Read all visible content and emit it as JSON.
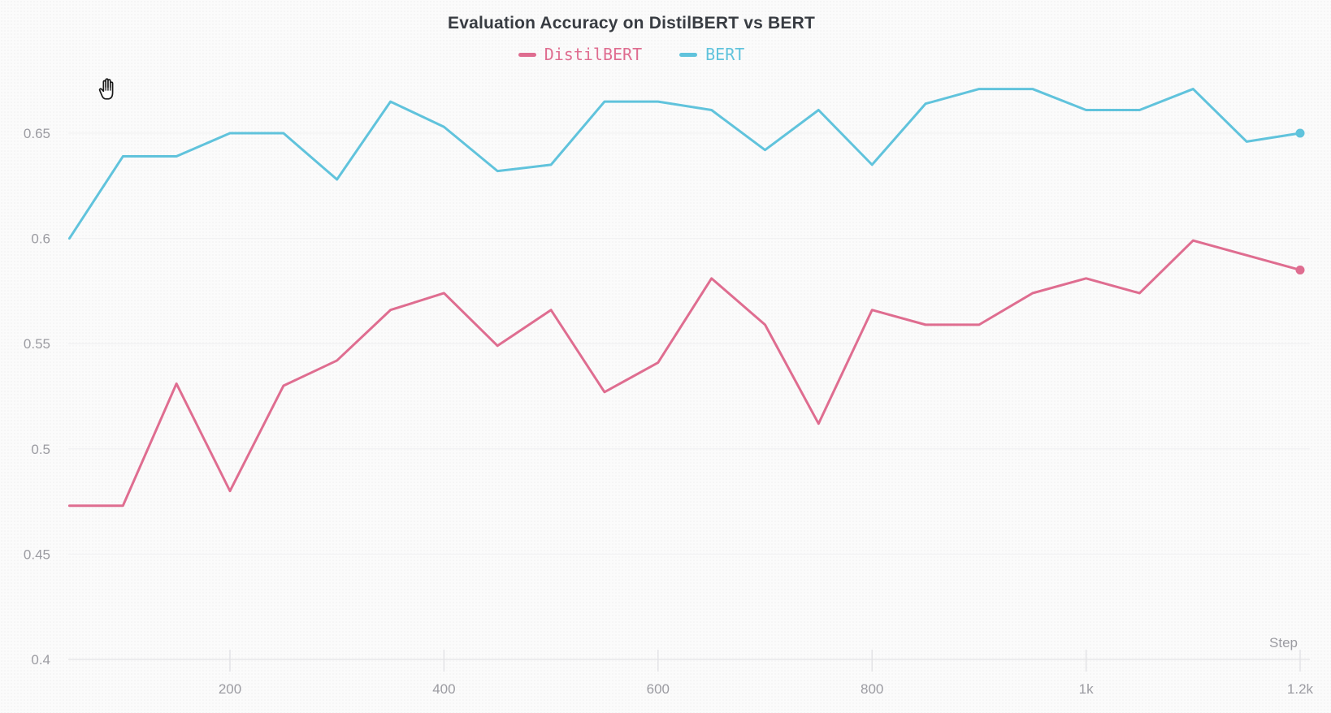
{
  "chart": {
    "title": "Evaluation Accuracy on DistilBERT vs BERT",
    "legend": [
      {
        "label": "DistilBERT",
        "color": "#df6d90"
      },
      {
        "label": "BERT",
        "color": "#60c3dc"
      }
    ],
    "x_axis": {
      "title": "Step",
      "tick_labels": [
        "200",
        "400",
        "600",
        "800",
        "1k",
        "1.2k"
      ],
      "tick_values": [
        200,
        400,
        600,
        800,
        1000,
        1200
      ]
    },
    "y_axis": {
      "tick_labels": [
        "0.65",
        "0.6",
        "0.55",
        "0.5",
        "0.45",
        "0.4"
      ],
      "tick_values": [
        0.65,
        0.6,
        0.55,
        0.5,
        0.45,
        0.4
      ]
    },
    "colors": {
      "grid": "#f0f0f2",
      "axis": "#e7e7e9",
      "tick": "#e3e3e6",
      "tick_label": "#9b9ba1",
      "title": "#383c42",
      "background": "#fbfbfb"
    }
  },
  "chart_data": {
    "type": "line",
    "title": "Evaluation Accuracy on DistilBERT vs BERT",
    "xlabel": "Step",
    "ylabel": "",
    "x": [
      50,
      100,
      150,
      200,
      250,
      300,
      350,
      400,
      450,
      500,
      550,
      600,
      650,
      700,
      750,
      800,
      850,
      900,
      950,
      1000,
      1050,
      1100,
      1150,
      1200
    ],
    "series": [
      {
        "name": "DistilBERT",
        "color": "#df6d90",
        "values": [
          0.473,
          0.473,
          0.531,
          0.48,
          0.53,
          0.542,
          0.566,
          0.574,
          0.549,
          0.566,
          0.527,
          0.541,
          0.581,
          0.559,
          0.512,
          0.566,
          0.559,
          0.559,
          0.574,
          0.581,
          0.574,
          0.599,
          0.592,
          0.585
        ]
      },
      {
        "name": "BERT",
        "color": "#60c3dc",
        "values": [
          0.6,
          0.639,
          0.639,
          0.65,
          0.65,
          0.628,
          0.665,
          0.653,
          0.632,
          0.635,
          0.665,
          0.665,
          0.661,
          0.642,
          0.661,
          0.635,
          0.664,
          0.671,
          0.671,
          0.661,
          0.661,
          0.671,
          0.646,
          0.65
        ]
      }
    ],
    "xlim": [
      50,
      1200
    ],
    "ylim": [
      0.4,
      0.675
    ],
    "grid": "horizontal",
    "legend_position": "top-center",
    "end_point_markers": true
  },
  "cursor": {
    "icon": "grab-hand"
  }
}
